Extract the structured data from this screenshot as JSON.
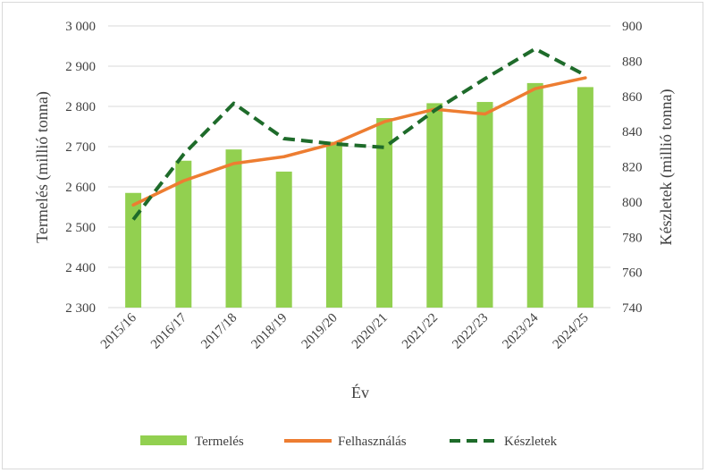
{
  "chart_data": {
    "type": "bar+line",
    "title": "",
    "categories": [
      "2015/16",
      "2016/17",
      "2017/18",
      "2018/19",
      "2019/20",
      "2020/21",
      "2021/22",
      "2022/23",
      "2023/24",
      "2024/25"
    ],
    "xlabel": "Év",
    "ylabel_left": "Termelés (millió tonna)",
    "ylabel_right": "Készletek (millió tonna)",
    "ylim_left": [
      2300,
      3000
    ],
    "yticks_left": [
      "2 300",
      "2 400",
      "2 500",
      "2 600",
      "2 700",
      "2 800",
      "2 900",
      "3 000"
    ],
    "ylim_right": [
      740,
      900
    ],
    "yticks_right": [
      "740",
      "760",
      "780",
      "800",
      "820",
      "840",
      "860",
      "880",
      "900"
    ],
    "grid": "horizontal",
    "legend_position": "bottom",
    "series": [
      {
        "name": "Termelés",
        "kind": "bar",
        "axis": "left",
        "color": "#92d050",
        "values": [
          2585,
          2665,
          2693,
          2638,
          2712,
          2771,
          2808,
          2811,
          2858,
          2848
        ]
      },
      {
        "name": "Felhasználás",
        "kind": "line",
        "axis": "left",
        "color": "#ed7d31",
        "style": "solid",
        "values": [
          2555,
          2615,
          2658,
          2675,
          2708,
          2762,
          2793,
          2781,
          2844,
          2871
        ]
      },
      {
        "name": "Készletek",
        "kind": "line",
        "axis": "right",
        "color": "#1e6b2a",
        "style": "dashed",
        "values": [
          790,
          827,
          856,
          836,
          833,
          831,
          852,
          870,
          887,
          872
        ]
      }
    ]
  }
}
